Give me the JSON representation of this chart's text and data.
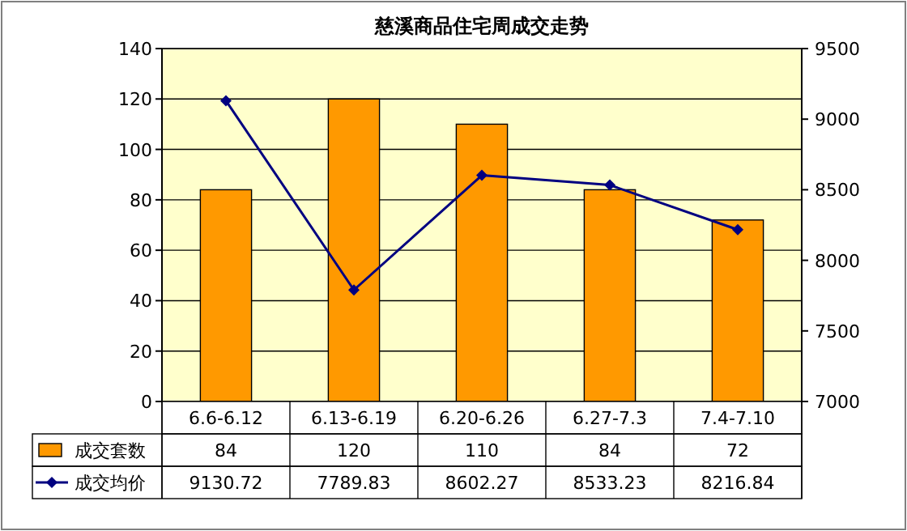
{
  "chart_data": {
    "type": "bar",
    "title": "慈溪商品住宅周成交走势",
    "categories": [
      "6.6-6.12",
      "6.13-6.19",
      "6.20-6.26",
      "6.27-7.3",
      "7.4-7.10"
    ],
    "series": [
      {
        "name": "成交套数",
        "color": "#ff9900",
        "values": [
          84,
          120,
          110,
          84,
          72
        ]
      },
      {
        "name": "成交均价",
        "type": "line",
        "axis": "y2",
        "color": "#000080",
        "values": [
          9130.72,
          7789.83,
          8602.27,
          8533.23,
          8216.84
        ]
      }
    ],
    "ylim": [
      0,
      140
    ],
    "yticks": [
      0,
      20,
      40,
      60,
      80,
      100,
      120,
      140
    ],
    "y2lim": [
      7000,
      9500
    ],
    "y2ticks": [
      7000,
      7500,
      8000,
      8500,
      9000,
      9500
    ],
    "grid": "y",
    "legend": "bottom",
    "marker": "diamond",
    "data_labels": true
  }
}
